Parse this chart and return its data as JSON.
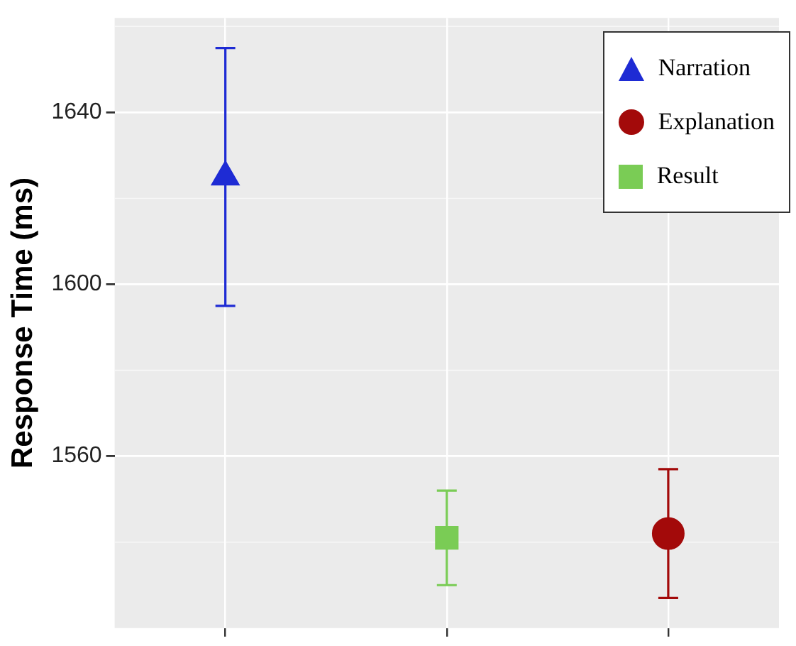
{
  "chart_data": {
    "type": "scatter",
    "ylabel": "Response Time (ms)",
    "categories": [
      null,
      null,
      null
    ],
    "series": [
      {
        "name": "Narration",
        "color": "#1e2bd4",
        "marker": "triangle",
        "values": [
          1625,
          null,
          null
        ],
        "errors": [
          30,
          null,
          null
        ]
      },
      {
        "name": "Explanation",
        "color": "#a30a0a",
        "marker": "circle",
        "values": [
          null,
          null,
          1542
        ],
        "errors": [
          null,
          null,
          15
        ]
      },
      {
        "name": "Result",
        "color": "#7acc55",
        "marker": "square",
        "values": [
          null,
          1541,
          null
        ],
        "errors": [
          null,
          11,
          null
        ]
      }
    ],
    "ylim": [
      1520,
      1662
    ],
    "yticks": [
      1560,
      1600,
      1640
    ],
    "grid": true,
    "legend": "top right",
    "tick_labels": "y"
  }
}
